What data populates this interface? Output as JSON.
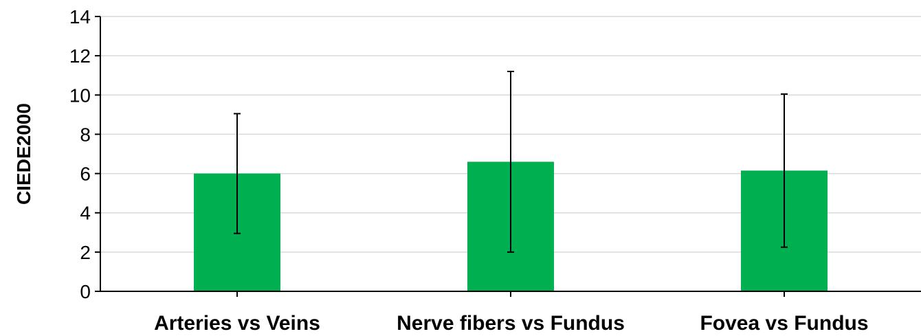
{
  "chart_data": {
    "type": "bar",
    "categories": [
      "Arteries vs Veins",
      "Nerve fibers vs Fundus",
      "Fovea vs Fundus"
    ],
    "values": [
      6.0,
      6.6,
      6.15
    ],
    "error_low": [
      2.95,
      2.0,
      2.25
    ],
    "error_high": [
      9.05,
      11.2,
      10.05
    ],
    "title": "",
    "xlabel": "",
    "ylabel": "CIEDE2000",
    "ylim": [
      0,
      14
    ],
    "yticks": [
      0,
      2,
      4,
      6,
      8,
      10,
      12,
      14
    ],
    "grid": true,
    "legend": "none",
    "colors": {
      "bar": "#00b050",
      "grid": "#d9d9d9",
      "axis": "#000000",
      "error_bar": "#000000"
    }
  }
}
